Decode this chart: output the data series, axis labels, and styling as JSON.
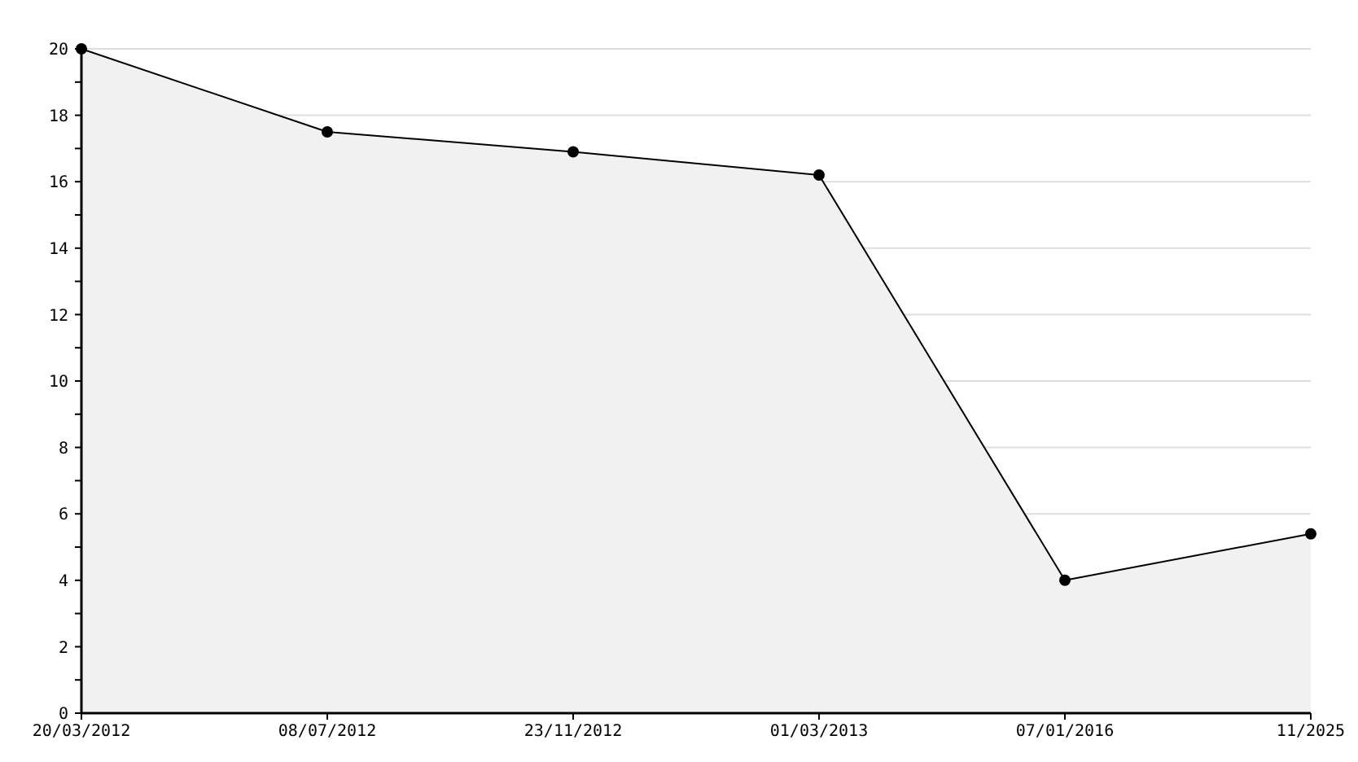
{
  "chart_data": {
    "type": "area",
    "categories": [
      "20/03/2012",
      "08/07/2012",
      "23/11/2012",
      "01/03/2013",
      "07/01/2016",
      "11/2025"
    ],
    "series": [
      {
        "color": "#000000",
        "values": [
          20,
          17.5,
          16.9,
          16.2,
          4.0,
          5.4
        ]
      }
    ],
    "ylim": [
      0,
      20
    ],
    "yticks": [
      0,
      {
        "value": 1,
        "label": null
      },
      2,
      {
        "value": 3,
        "label": null
      },
      4,
      {
        "value": 5,
        "label": null
      },
      6,
      {
        "value": 7,
        "label": null
      },
      8,
      {
        "value": 9,
        "label": null
      },
      10,
      {
        "value": 11,
        "label": null
      },
      12,
      {
        "value": 13,
        "label": null
      },
      14,
      {
        "value": 15,
        "label": null
      },
      16,
      {
        "value": 17,
        "label": null
      },
      18,
      {
        "value": 19,
        "label": null
      },
      20
    ],
    "grid": "y",
    "marker": "circle",
    "line_style": "solid"
  }
}
